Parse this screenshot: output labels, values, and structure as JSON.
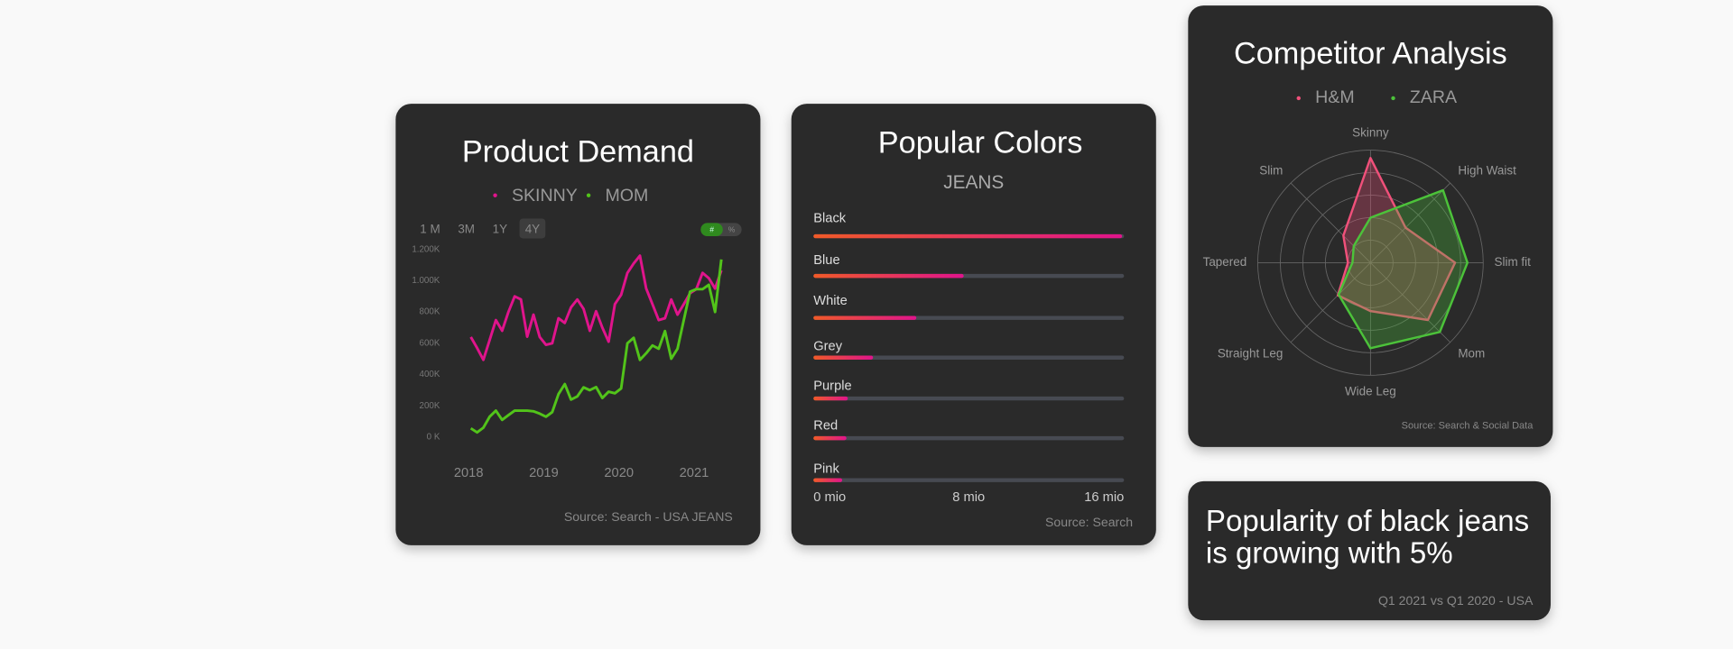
{
  "chart_data": [
    {
      "type": "line",
      "title": "Product Demand",
      "range_buttons": [
        "1 M",
        "3M",
        "1Y",
        "4Y"
      ],
      "selected_range": 3,
      "units_toggle": [
        "#",
        "%"
      ],
      "categories": [
        "2018",
        null,
        null,
        null,
        null,
        null,
        null,
        null,
        null,
        null,
        null,
        null,
        "2019",
        null,
        null,
        null,
        null,
        null,
        null,
        null,
        null,
        null,
        null,
        null,
        "2020",
        null,
        null,
        null,
        null,
        null,
        null,
        null,
        null,
        null,
        null,
        null,
        "2021",
        null,
        null,
        null,
        null
      ],
      "series": [
        {
          "name": "SKINNY",
          "color": "#e0148c",
          "values": [
            640,
            570,
            494,
            620,
            748,
            680,
            800,
            900,
            880,
            642,
            783,
            640,
            590,
            600,
            760,
            730,
            830,
            880,
            820,
            680,
            805,
            700,
            610,
            850,
            910,
            1050,
            1110,
            1160,
            950,
            850,
            748,
            760,
            880,
            783,
            850,
            920,
            946,
            1050,
            1016,
            950,
            1066
          ]
        },
        {
          "name": "MOM",
          "color": "#52c41a",
          "values": [
            56,
            30,
            60,
            130,
            169,
            110,
            140,
            169,
            169,
            169,
            165,
            150,
            130,
            160,
            275,
            339,
            240,
            260,
            318,
            300,
            320,
            250,
            290,
            280,
            311,
            600,
            635,
            494,
            536,
            586,
            565,
            678,
            501,
            565,
            748,
            930,
            946,
            946,
            974,
            800,
            1136
          ]
        }
      ],
      "ylim": [
        0,
        1200
      ],
      "yticks": [
        {
          "value": 0,
          "label": "0 K"
        },
        {
          "value": 200,
          "label": "200K"
        },
        {
          "value": 400,
          "label": "400K"
        },
        {
          "value": 600,
          "label": "600K"
        },
        {
          "value": 800,
          "label": "800K"
        },
        {
          "value": 1000,
          "label": "1.000K"
        },
        {
          "value": 1200,
          "label": "1.200K"
        }
      ],
      "grid": false,
      "source": "Source:  Search - USA JEANS"
    },
    {
      "type": "progress",
      "title": "Popular Colors",
      "subtitle": "JEANS",
      "categories": [
        "Black",
        "Blue",
        "White",
        "Grey",
        "Purple",
        "Red",
        "Pink"
      ],
      "values": [
        15.9,
        7.74,
        5.3,
        3.07,
        1.77,
        1.7,
        1.48
      ],
      "color": [
        "#f05a28",
        "#e0148c"
      ],
      "xlim": [
        0,
        16
      ],
      "xticks": [
        {
          "value": 0,
          "label": "0 mio"
        },
        {
          "value": 8,
          "label": "8 mio"
        },
        {
          "value": 16,
          "label": "16 mio"
        }
      ],
      "source": "Source:  Search"
    },
    {
      "type": "radar",
      "title": "Competitor Analysis",
      "categories": [
        "Skinny",
        "High Waist",
        "Slim fit",
        "Mom",
        "Wide Leg",
        "Straight Leg",
        "Tapered",
        "Slim"
      ],
      "series": [
        {
          "name": "H&M",
          "color": "#f0507a",
          "values": [
            93,
            44,
            75,
            72,
            43,
            41,
            20,
            34
          ]
        },
        {
          "name": "ZARA",
          "color": "#4cc23a",
          "values": [
            40,
            91,
            86,
            87,
            76,
            40,
            16,
            21
          ]
        }
      ],
      "rlim": [
        0,
        100
      ],
      "rticks": [
        20,
        40,
        60,
        80,
        100
      ],
      "source": "Source:  Search & Social Data"
    }
  ],
  "insight": {
    "text": [
      "Popularity of black jeans",
      "is growing with 5%"
    ],
    "note": "Q1 2021 vs Q1 2020 - USA"
  }
}
